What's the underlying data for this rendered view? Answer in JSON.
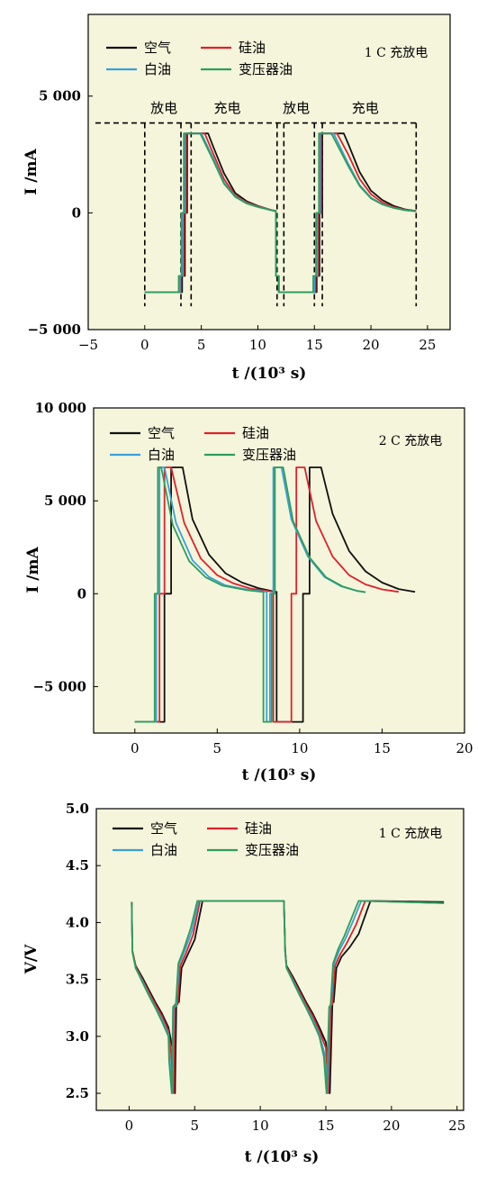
{
  "colors": {
    "plot_bg": "#f5f5dc",
    "air": "#111111",
    "silicone_oil": "#e0202a",
    "white_oil": "#3aa0d8",
    "transformer_oil": "#2e9e5a"
  },
  "legend": {
    "air": "空气",
    "silicone_oil": "硅油",
    "white_oil": "白油",
    "transformer_oil": "变压器油"
  },
  "chart_data": [
    {
      "type": "line",
      "title": "1 C 充放电",
      "xlabel": "t /(10³ s)",
      "ylabel": "I /mA",
      "xlim": [
        -5,
        27
      ],
      "ylim": [
        -5000,
        8500
      ],
      "x_ticks": [
        -5,
        0,
        5,
        10,
        15,
        20,
        25
      ],
      "y_ticks": [
        -5000,
        0,
        5000
      ],
      "x_tick_labels": [
        "−5",
        "0",
        "5",
        "10",
        "15",
        "20",
        "25"
      ],
      "y_tick_labels": [
        "−5 000",
        "0",
        "5 000"
      ],
      "annotations": [
        {
          "text": "放电",
          "x": 1.7,
          "y": 4300
        },
        {
          "text": "充电",
          "x": 7.3,
          "y": 4300
        },
        {
          "text": "放电",
          "x": 13.4,
          "y": 4300
        },
        {
          "text": "充电",
          "x": 19.5,
          "y": 4300
        }
      ],
      "regions": {
        "dashed_level": 3850,
        "boxes": [
          {
            "x0": 0,
            "x1": 3.2,
            "y0": -4000,
            "y1": 3850
          },
          {
            "x0": 4.1,
            "x1": 11.7,
            "y0": -4000,
            "y1": 3850
          },
          {
            "x0": 12.3,
            "x1": 15.0,
            "y0": -4000,
            "y1": 3850
          },
          {
            "x0": 15.7,
            "x1": 24.0,
            "y0": -4000,
            "y1": 3850
          }
        ]
      },
      "series": [
        {
          "key": "air",
          "name": "空气",
          "x": [
            0,
            3.3,
            3.3,
            3.55,
            3.55,
            3.75,
            3.75,
            5.6,
            6,
            7,
            8,
            9,
            10,
            11.2,
            11.6,
            11.6,
            11.85,
            11.85,
            15.2,
            15.2,
            15.45,
            15.45,
            15.7,
            15.7,
            17.6,
            18,
            19,
            20,
            21,
            22,
            23,
            24
          ],
          "y": [
            -3400,
            -3400,
            -2700,
            -2700,
            0,
            0,
            3400,
            3400,
            2900,
            1700,
            850,
            500,
            300,
            120,
            80,
            -2700,
            -2700,
            -3400,
            -3400,
            -2700,
            -2700,
            0,
            0,
            3400,
            3400,
            2950,
            1750,
            950,
            550,
            300,
            150,
            80
          ]
        },
        {
          "key": "silicone_oil",
          "name": "硅油",
          "x": [
            0,
            3.2,
            3.2,
            3.45,
            3.45,
            3.65,
            3.65,
            5.3,
            6,
            7,
            8,
            9,
            10,
            11.2,
            11.6,
            11.6,
            11.85,
            11.85,
            15.1,
            15.1,
            15.35,
            15.35,
            15.6,
            15.6,
            17,
            18,
            19,
            20,
            21,
            22,
            23,
            24
          ],
          "y": [
            -3400,
            -3400,
            -2700,
            -2700,
            0,
            0,
            3400,
            3400,
            2600,
            1450,
            750,
            450,
            280,
            120,
            80,
            -2700,
            -2700,
            -3400,
            -3400,
            -2700,
            -2700,
            0,
            0,
            3400,
            3400,
            2500,
            1450,
            800,
            450,
            250,
            130,
            80
          ]
        },
        {
          "key": "white_oil",
          "name": "白油",
          "x": [
            0,
            3.1,
            3.1,
            3.35,
            3.35,
            3.55,
            3.55,
            5.0,
            6,
            7,
            8,
            9,
            10,
            11.2,
            11.6,
            11.6,
            11.85,
            11.85,
            15.0,
            15.0,
            15.25,
            15.25,
            15.5,
            15.5,
            16.7,
            18,
            19,
            20,
            21,
            22,
            23,
            24
          ],
          "y": [
            -3400,
            -3400,
            -2700,
            -2700,
            0,
            0,
            3400,
            3400,
            2400,
            1300,
            700,
            420,
            260,
            110,
            70,
            -2700,
            -2700,
            -3400,
            -3400,
            -2700,
            -2700,
            0,
            0,
            3400,
            3400,
            2100,
            1200,
            650,
            380,
            220,
            120,
            70
          ]
        },
        {
          "key": "transformer_oil",
          "name": "变压器油",
          "x": [
            0,
            3.0,
            3.0,
            3.25,
            3.25,
            3.45,
            3.45,
            4.9,
            6,
            7,
            8,
            9,
            10,
            11.2,
            11.6,
            11.6,
            11.85,
            11.85,
            14.9,
            14.9,
            15.15,
            15.15,
            15.4,
            15.4,
            16.5,
            18,
            19,
            20,
            21,
            22,
            23,
            24
          ],
          "y": [
            -3400,
            -3400,
            -2700,
            -2700,
            0,
            0,
            3400,
            3400,
            2300,
            1250,
            680,
            400,
            250,
            110,
            70,
            -2700,
            -2700,
            -3400,
            -3400,
            -2700,
            -2700,
            0,
            0,
            3400,
            3400,
            2000,
            1150,
            620,
            360,
            210,
            110,
            70
          ]
        }
      ]
    },
    {
      "type": "line",
      "title": "2 C 充放电",
      "xlabel": "t /(10³ s)",
      "ylabel": "I /mA",
      "xlim": [
        -2.5,
        20
      ],
      "ylim": [
        -7500,
        10000
      ],
      "x_ticks": [
        0,
        5,
        10,
        15,
        20
      ],
      "y_ticks": [
        -5000,
        0,
        5000,
        10000
      ],
      "x_tick_labels": [
        "0",
        "5",
        "10",
        "15",
        "20"
      ],
      "y_tick_labels": [
        "−5 000",
        "0",
        "5 000",
        "10 000"
      ],
      "series": [
        {
          "key": "air",
          "name": "空气",
          "x": [
            0,
            1.8,
            1.8,
            2.2,
            2.2,
            2.6,
            2.9,
            3.5,
            4.5,
            5.5,
            6.5,
            7.5,
            8.3,
            8.6,
            8.6,
            10.2,
            10.2,
            10.6,
            10.6,
            10.8,
            11.3,
            12,
            13,
            14,
            15,
            16,
            17
          ],
          "y": [
            -6900,
            -6900,
            0,
            0,
            6800,
            6800,
            6800,
            4000,
            2100,
            1100,
            600,
            300,
            150,
            100,
            -6900,
            -6900,
            0,
            0,
            6800,
            6800,
            6800,
            4300,
            2300,
            1200,
            600,
            250,
            100
          ]
        },
        {
          "key": "silicone_oil",
          "name": "硅油",
          "x": [
            0,
            1.5,
            1.5,
            1.8,
            1.8,
            2.0,
            2.2,
            3,
            4,
            5,
            6,
            7,
            8.2,
            8.4,
            8.4,
            9.5,
            9.5,
            9.8,
            9.8,
            9.9,
            10.3,
            11,
            12,
            13,
            14,
            15,
            16
          ],
          "y": [
            -6900,
            -6900,
            0,
            0,
            6800,
            6800,
            6800,
            3800,
            1900,
            1000,
            550,
            280,
            130,
            100,
            -6900,
            -6900,
            0,
            0,
            6800,
            6800,
            6800,
            3900,
            2000,
            1000,
            500,
            230,
            100
          ]
        },
        {
          "key": "white_oil",
          "name": "白油",
          "x": [
            0,
            1.3,
            1.3,
            1.5,
            1.5,
            1.6,
            1.8,
            2.5,
            3.5,
            4.5,
            5.5,
            7,
            7.8,
            8.0,
            8.0,
            8.2,
            8.2,
            8.4,
            8.4,
            8.5,
            8.9,
            9.5,
            10.5,
            11.5,
            12.5,
            13.5,
            14
          ],
          "y": [
            -6900,
            -6900,
            0,
            0,
            6800,
            6800,
            6800,
            3800,
            1800,
            900,
            450,
            200,
            120,
            100,
            -6900,
            -6900,
            0,
            0,
            6800,
            6800,
            6800,
            4000,
            2000,
            900,
            400,
            150,
            80
          ]
        },
        {
          "key": "transformer_oil",
          "name": "变压器油",
          "x": [
            0,
            1.2,
            1.2,
            1.4,
            1.4,
            1.5,
            1.6,
            2.3,
            3.3,
            4.3,
            5.3,
            6.8,
            7.6,
            7.8,
            7.8,
            8.3,
            8.3,
            8.5,
            8.5,
            8.6,
            9.0,
            9.6,
            10.6,
            11.6,
            12.6,
            13.5,
            14
          ],
          "y": [
            -6900,
            -6900,
            0,
            0,
            6800,
            6800,
            6800,
            3700,
            1750,
            880,
            440,
            190,
            110,
            100,
            -6900,
            -6900,
            0,
            0,
            6800,
            6800,
            6800,
            3900,
            1950,
            880,
            390,
            150,
            80
          ]
        }
      ]
    },
    {
      "type": "line",
      "title": "1 C 充放电",
      "xlabel": "t /(10³ s)",
      "ylabel": "V/V",
      "xlim": [
        -2.5,
        25.5
      ],
      "ylim": [
        2.35,
        5.0
      ],
      "x_ticks": [
        0,
        5,
        10,
        15,
        20,
        25
      ],
      "y_ticks": [
        2.5,
        3.0,
        3.5,
        4.0,
        4.5,
        5.0
      ],
      "x_tick_labels": [
        "0",
        "5",
        "10",
        "15",
        "20",
        "25"
      ],
      "y_tick_labels": [
        "2.5",
        "3.0",
        "3.5",
        "4.0",
        "4.5",
        "5.0"
      ],
      "series": [
        {
          "key": "air",
          "name": "空气",
          "x": [
            0.2,
            0.25,
            0.5,
            1,
            1.5,
            2,
            2.5,
            3,
            3.3,
            3.5,
            3.6,
            3.8,
            4,
            4.4,
            5,
            5.6,
            11.8,
            11.9,
            12,
            12.5,
            13,
            13.5,
            14,
            14.5,
            15,
            15.3,
            15.5,
            15.6,
            15.8,
            16.2,
            16.8,
            17.5,
            18.4,
            24
          ],
          "y": [
            4.18,
            3.75,
            3.62,
            3.52,
            3.41,
            3.3,
            3.2,
            3.08,
            2.9,
            2.5,
            3.3,
            3.3,
            3.6,
            3.7,
            3.85,
            4.19,
            4.19,
            3.75,
            3.62,
            3.52,
            3.41,
            3.3,
            3.2,
            3.08,
            2.95,
            2.5,
            3.3,
            3.3,
            3.6,
            3.7,
            3.78,
            3.9,
            4.19,
            4.18
          ]
        },
        {
          "key": "silicone_oil",
          "name": "硅油",
          "x": [
            0.2,
            0.25,
            0.5,
            1,
            1.5,
            2,
            2.5,
            3,
            3.2,
            3.4,
            3.5,
            3.7,
            3.9,
            4.3,
            4.9,
            5.4,
            11.8,
            11.9,
            12,
            12.5,
            13,
            13.5,
            14,
            14.5,
            15,
            15.2,
            15.4,
            15.5,
            15.7,
            16.1,
            16.6,
            17.3,
            18.0,
            24
          ],
          "y": [
            4.18,
            3.75,
            3.61,
            3.5,
            3.39,
            3.28,
            3.18,
            3.05,
            2.85,
            2.5,
            3.28,
            3.28,
            3.62,
            3.72,
            3.9,
            4.19,
            4.19,
            3.75,
            3.61,
            3.5,
            3.39,
            3.28,
            3.18,
            3.05,
            2.9,
            2.5,
            3.28,
            3.28,
            3.62,
            3.72,
            3.82,
            3.98,
            4.19,
            4.17
          ]
        },
        {
          "key": "white_oil",
          "name": "白油",
          "x": [
            0.2,
            0.25,
            0.5,
            1,
            1.5,
            2,
            2.5,
            3,
            3.1,
            3.3,
            3.4,
            3.6,
            3.8,
            4.2,
            4.8,
            5.3,
            11.8,
            11.9,
            12,
            12.5,
            13,
            13.5,
            14,
            14.5,
            14.9,
            15.1,
            15.3,
            15.4,
            15.6,
            16,
            16.5,
            17.1,
            17.7,
            24
          ],
          "y": [
            4.18,
            3.74,
            3.6,
            3.49,
            3.37,
            3.26,
            3.15,
            3.02,
            2.8,
            2.5,
            3.27,
            3.27,
            3.63,
            3.74,
            3.93,
            4.19,
            4.19,
            3.74,
            3.6,
            3.49,
            3.37,
            3.26,
            3.15,
            3.02,
            2.85,
            2.5,
            3.27,
            3.27,
            3.63,
            3.75,
            3.86,
            4.02,
            4.19,
            4.17
          ]
        },
        {
          "key": "transformer_oil",
          "name": "变压器油",
          "x": [
            0.2,
            0.25,
            0.5,
            1,
            1.5,
            2,
            2.5,
            3,
            3.05,
            3.25,
            3.35,
            3.55,
            3.75,
            4.15,
            4.7,
            5.2,
            11.8,
            11.9,
            12,
            12.5,
            13,
            13.5,
            14,
            14.5,
            14.85,
            15.05,
            15.25,
            15.35,
            15.55,
            15.95,
            16.4,
            17,
            17.5,
            24
          ],
          "y": [
            4.18,
            3.74,
            3.6,
            3.48,
            3.36,
            3.25,
            3.13,
            3.0,
            2.78,
            2.5,
            3.26,
            3.26,
            3.64,
            3.76,
            3.95,
            4.19,
            4.19,
            3.74,
            3.6,
            3.48,
            3.36,
            3.25,
            3.13,
            3.0,
            2.82,
            2.5,
            3.26,
            3.26,
            3.64,
            3.77,
            3.88,
            4.05,
            4.19,
            4.17
          ]
        }
      ]
    }
  ]
}
